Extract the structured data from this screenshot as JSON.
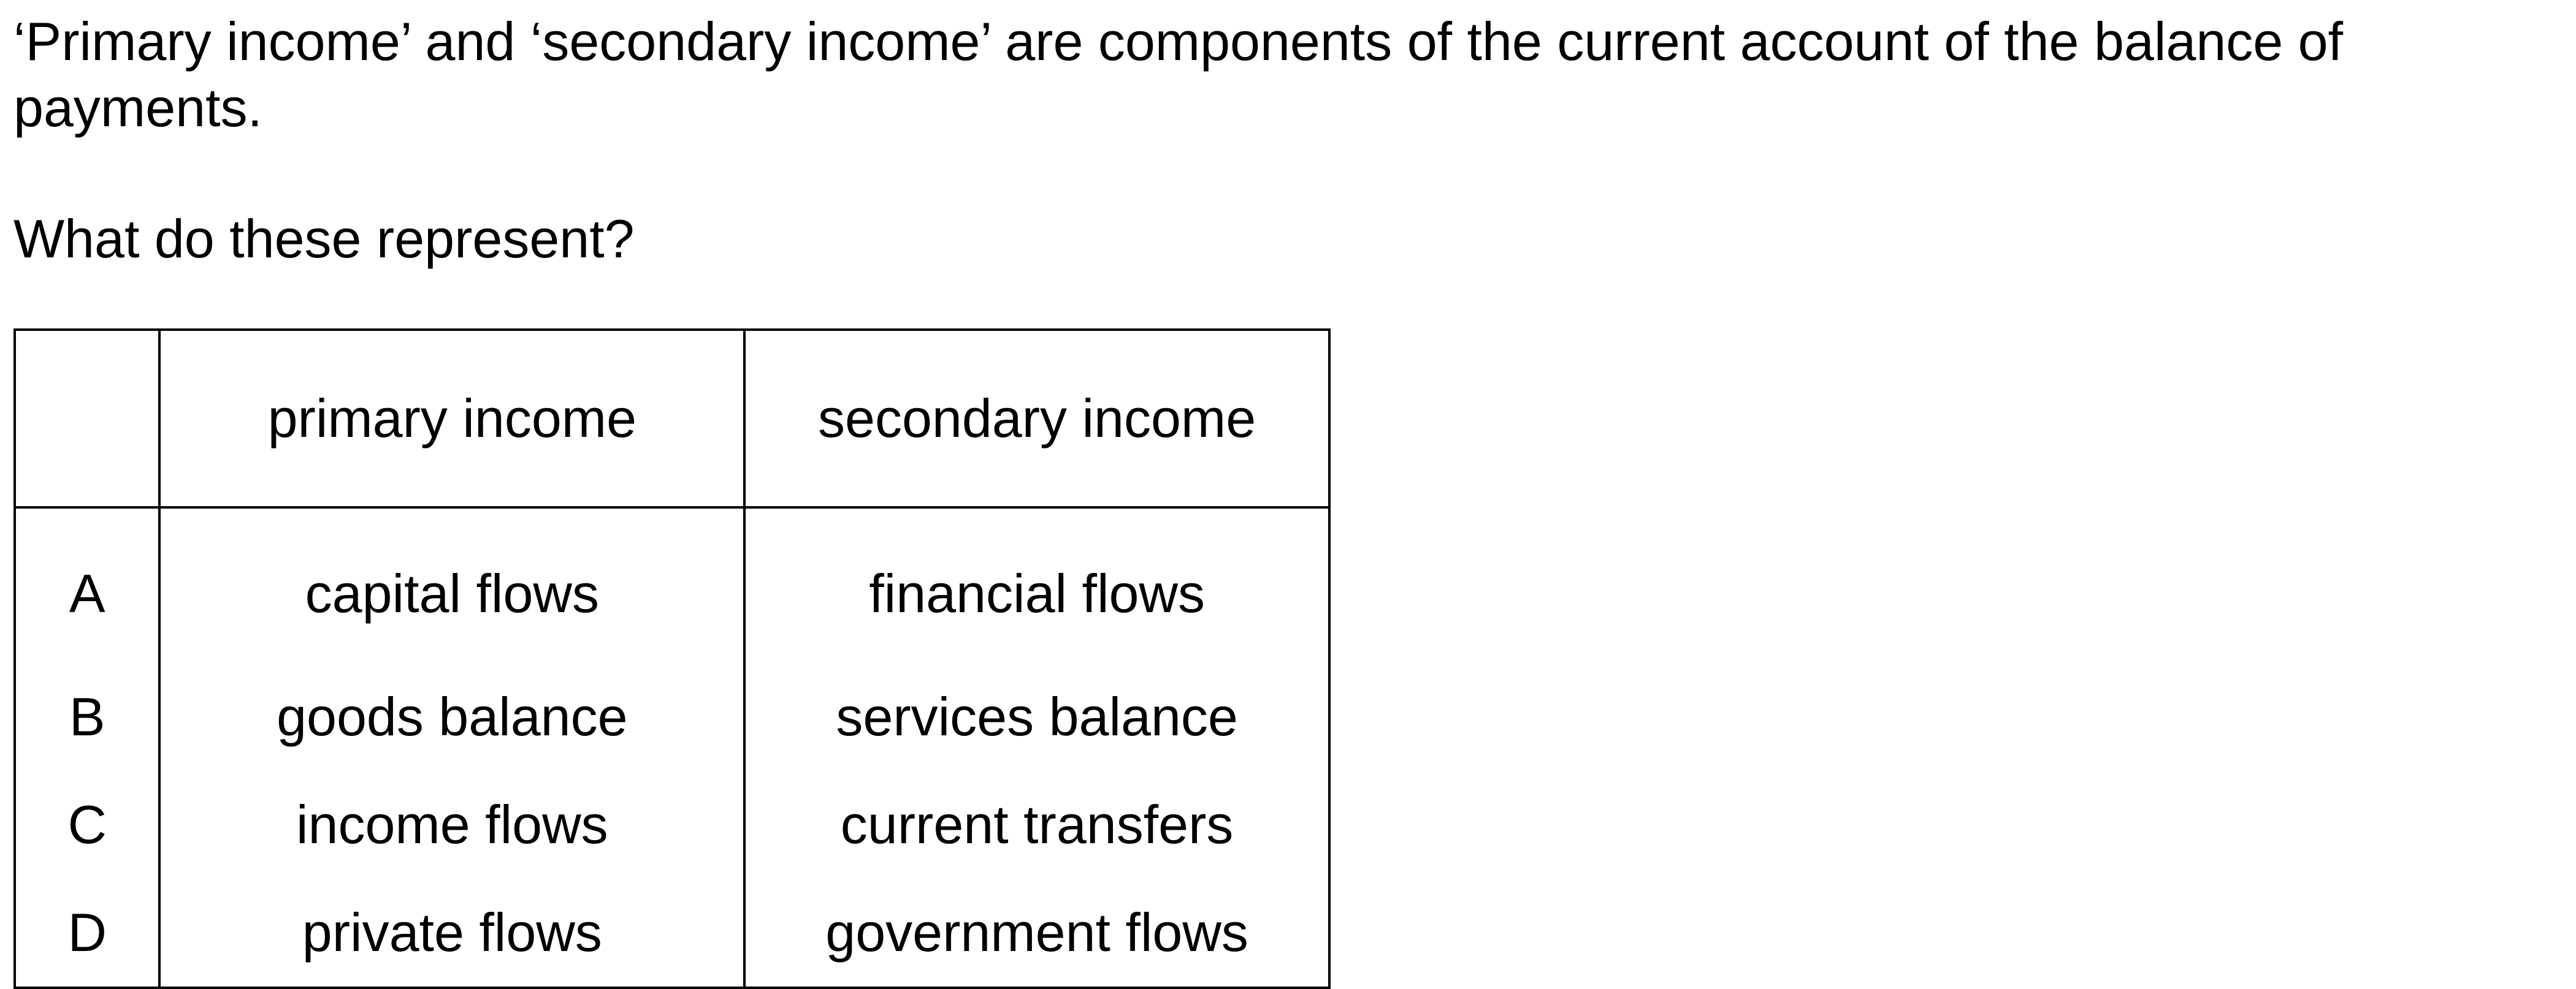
{
  "stem": "‘Primary income’ and ‘secondary income’ are components of the current account of the balance of payments.",
  "question": "What do these represent?",
  "table": {
    "headers": [
      "",
      "primary income",
      "secondary income"
    ],
    "rows": [
      {
        "letter": "A",
        "primary": "capital flows",
        "secondary": "financial flows"
      },
      {
        "letter": "B",
        "primary": "goods balance",
        "secondary": "services balance"
      },
      {
        "letter": "C",
        "primary": "income flows",
        "secondary": "current transfers"
      },
      {
        "letter": "D",
        "primary": "private flows",
        "secondary": "government flows"
      }
    ]
  }
}
